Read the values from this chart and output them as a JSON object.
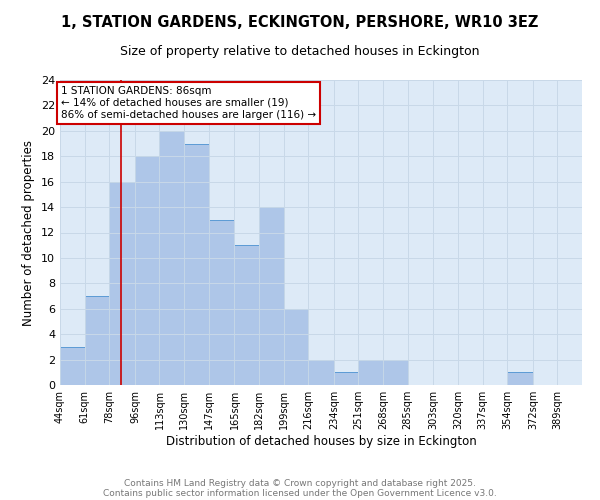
{
  "title": "1, STATION GARDENS, ECKINGTON, PERSHORE, WR10 3EZ",
  "subtitle": "Size of property relative to detached houses in Eckington",
  "xlabel": "Distribution of detached houses by size in Eckington",
  "ylabel": "Number of detached properties",
  "footer_line1": "Contains HM Land Registry data © Crown copyright and database right 2025.",
  "footer_line2": "Contains public sector information licensed under the Open Government Licence v3.0.",
  "bin_labels": [
    "44sqm",
    "61sqm",
    "78sqm",
    "96sqm",
    "113sqm",
    "130sqm",
    "147sqm",
    "165sqm",
    "182sqm",
    "199sqm",
    "216sqm",
    "234sqm",
    "251sqm",
    "268sqm",
    "285sqm",
    "303sqm",
    "320sqm",
    "337sqm",
    "354sqm",
    "372sqm",
    "389sqm"
  ],
  "bin_edges": [
    44,
    61,
    78,
    96,
    113,
    130,
    147,
    165,
    182,
    199,
    216,
    234,
    251,
    268,
    285,
    303,
    320,
    337,
    354,
    372,
    389
  ],
  "bar_heights": [
    3,
    7,
    16,
    18,
    20,
    19,
    13,
    11,
    14,
    6,
    2,
    1,
    2,
    2,
    0,
    0,
    0,
    0,
    1,
    0
  ],
  "bar_color": "#aec6e8",
  "bar_edge_color": "#5b9bd5",
  "grid_color": "#c8d8e8",
  "background_color": "#ddeaf7",
  "annotation_box_color": "#cc0000",
  "red_line_x": 86,
  "annotation_line1": "1 STATION GARDENS: 86sqm",
  "annotation_line2": "← 14% of detached houses are smaller (19)",
  "annotation_line3": "86% of semi-detached houses are larger (116) →",
  "annotation_fontsize": 7.5,
  "title_fontsize": 10.5,
  "subtitle_fontsize": 9,
  "footer_fontsize": 6.5,
  "ylabel_fontsize": 8.5,
  "xlabel_fontsize": 8.5,
  "ylim": [
    0,
    24
  ],
  "yticks": [
    0,
    2,
    4,
    6,
    8,
    10,
    12,
    14,
    16,
    18,
    20,
    22,
    24
  ]
}
